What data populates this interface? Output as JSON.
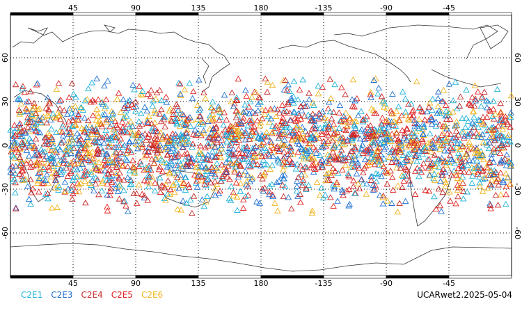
{
  "map": {
    "x_ticks": [
      45,
      90,
      135,
      180,
      -135,
      -90,
      -45
    ],
    "y_ticks_left": [
      60,
      30,
      0,
      -30,
      -60
    ],
    "lon_range": [
      0,
      360
    ],
    "lat_range": [
      -90,
      90
    ],
    "marker": "triangle",
    "region": "global, dense between 45S and 45N"
  },
  "legend": [
    {
      "label": "C2E1",
      "color": "#1ab0d8"
    },
    {
      "label": "C2E3",
      "color": "#1f6fd0"
    },
    {
      "label": "C2E4",
      "color": "#c62828"
    },
    {
      "label": "C2E5",
      "color": "#e0201f"
    },
    {
      "label": "C2E6",
      "color": "#f2b31c"
    }
  ],
  "footer": "UCARwet2.2025-05-04"
}
